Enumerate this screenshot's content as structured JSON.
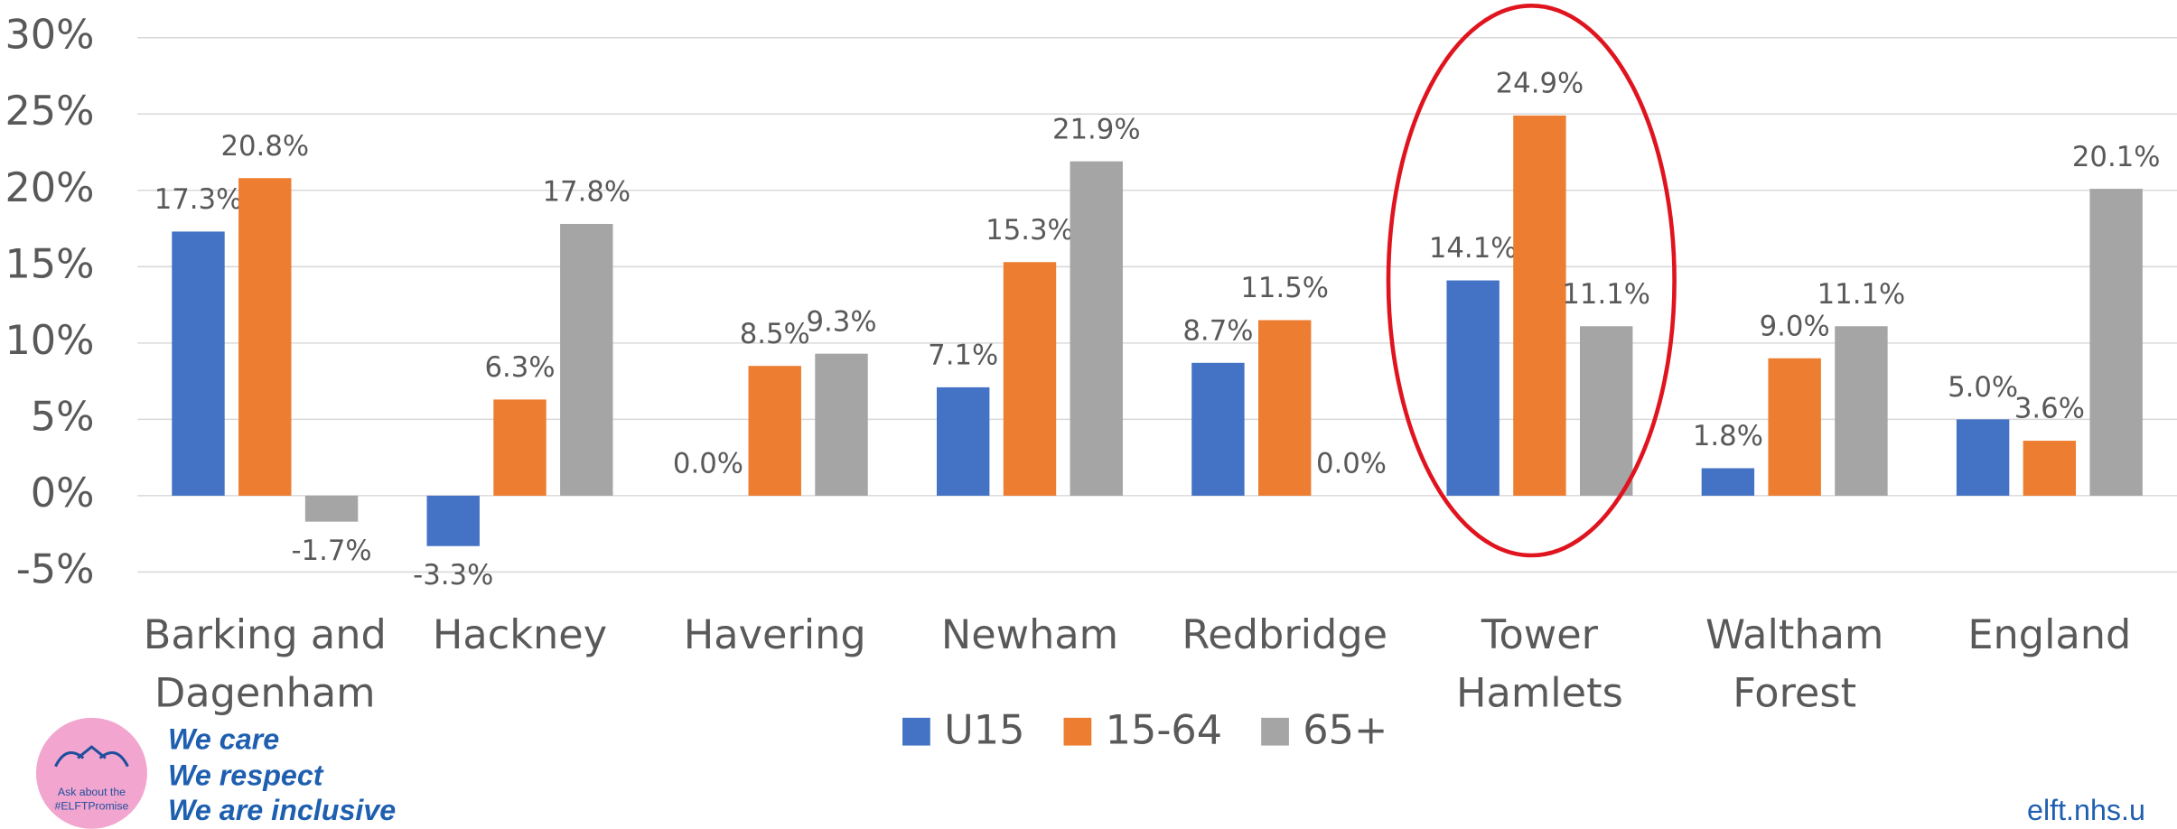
{
  "chart_data": {
    "type": "bar",
    "categories": [
      "Barking and Dagenham",
      "Hackney",
      "Havering",
      "Newham",
      "Redbridge",
      "Tower Hamlets",
      "Waltham Forest",
      "England"
    ],
    "series": [
      {
        "name": "U15",
        "color": "#4472c4",
        "values": [
          17.3,
          -3.3,
          0.0,
          7.1,
          8.7,
          14.1,
          1.8,
          5.0
        ],
        "value_labels": [
          "17.3%",
          "-3.3%",
          "0.0%",
          "7.1%",
          "8.7%",
          "14.1%",
          "1.8%",
          "5.0%"
        ]
      },
      {
        "name": "15-64",
        "color": "#ed7d31",
        "values": [
          20.8,
          6.3,
          8.5,
          15.3,
          11.5,
          24.9,
          9.0,
          3.6
        ],
        "value_labels": [
          "20.8%",
          "6.3%",
          "8.5%",
          "15.3%",
          "11.5%",
          "24.9%",
          "9.0%",
          "3.6%"
        ]
      },
      {
        "name": "65+",
        "color": "#a5a5a5",
        "values": [
          -1.7,
          17.8,
          9.3,
          21.9,
          0.0,
          11.1,
          11.1,
          20.1
        ],
        "value_labels": [
          "-1.7%",
          "17.8%",
          "9.3%",
          "21.9%",
          "0.0%",
          "11.1%",
          "11.1%",
          "20.1%"
        ]
      }
    ],
    "ylim": [
      -5,
      30
    ],
    "yticks": [
      {
        "value": -5,
        "label": "-5%"
      },
      {
        "value": 0,
        "label": "0%"
      },
      {
        "value": 5,
        "label": "5%"
      },
      {
        "value": 10,
        "label": "10%"
      },
      {
        "value": 15,
        "label": "15%"
      },
      {
        "value": 20,
        "label": "20%"
      },
      {
        "value": 25,
        "label": "25%"
      },
      {
        "value": 30,
        "label": "30%"
      }
    ],
    "grid": true,
    "legend": "bottom"
  },
  "branding": {
    "badge": [
      "Ask about the",
      "#ELFTPromise"
    ],
    "slogans": [
      "We care",
      "We respect",
      "We are inclusive"
    ],
    "url": "elft.nhs.u"
  }
}
